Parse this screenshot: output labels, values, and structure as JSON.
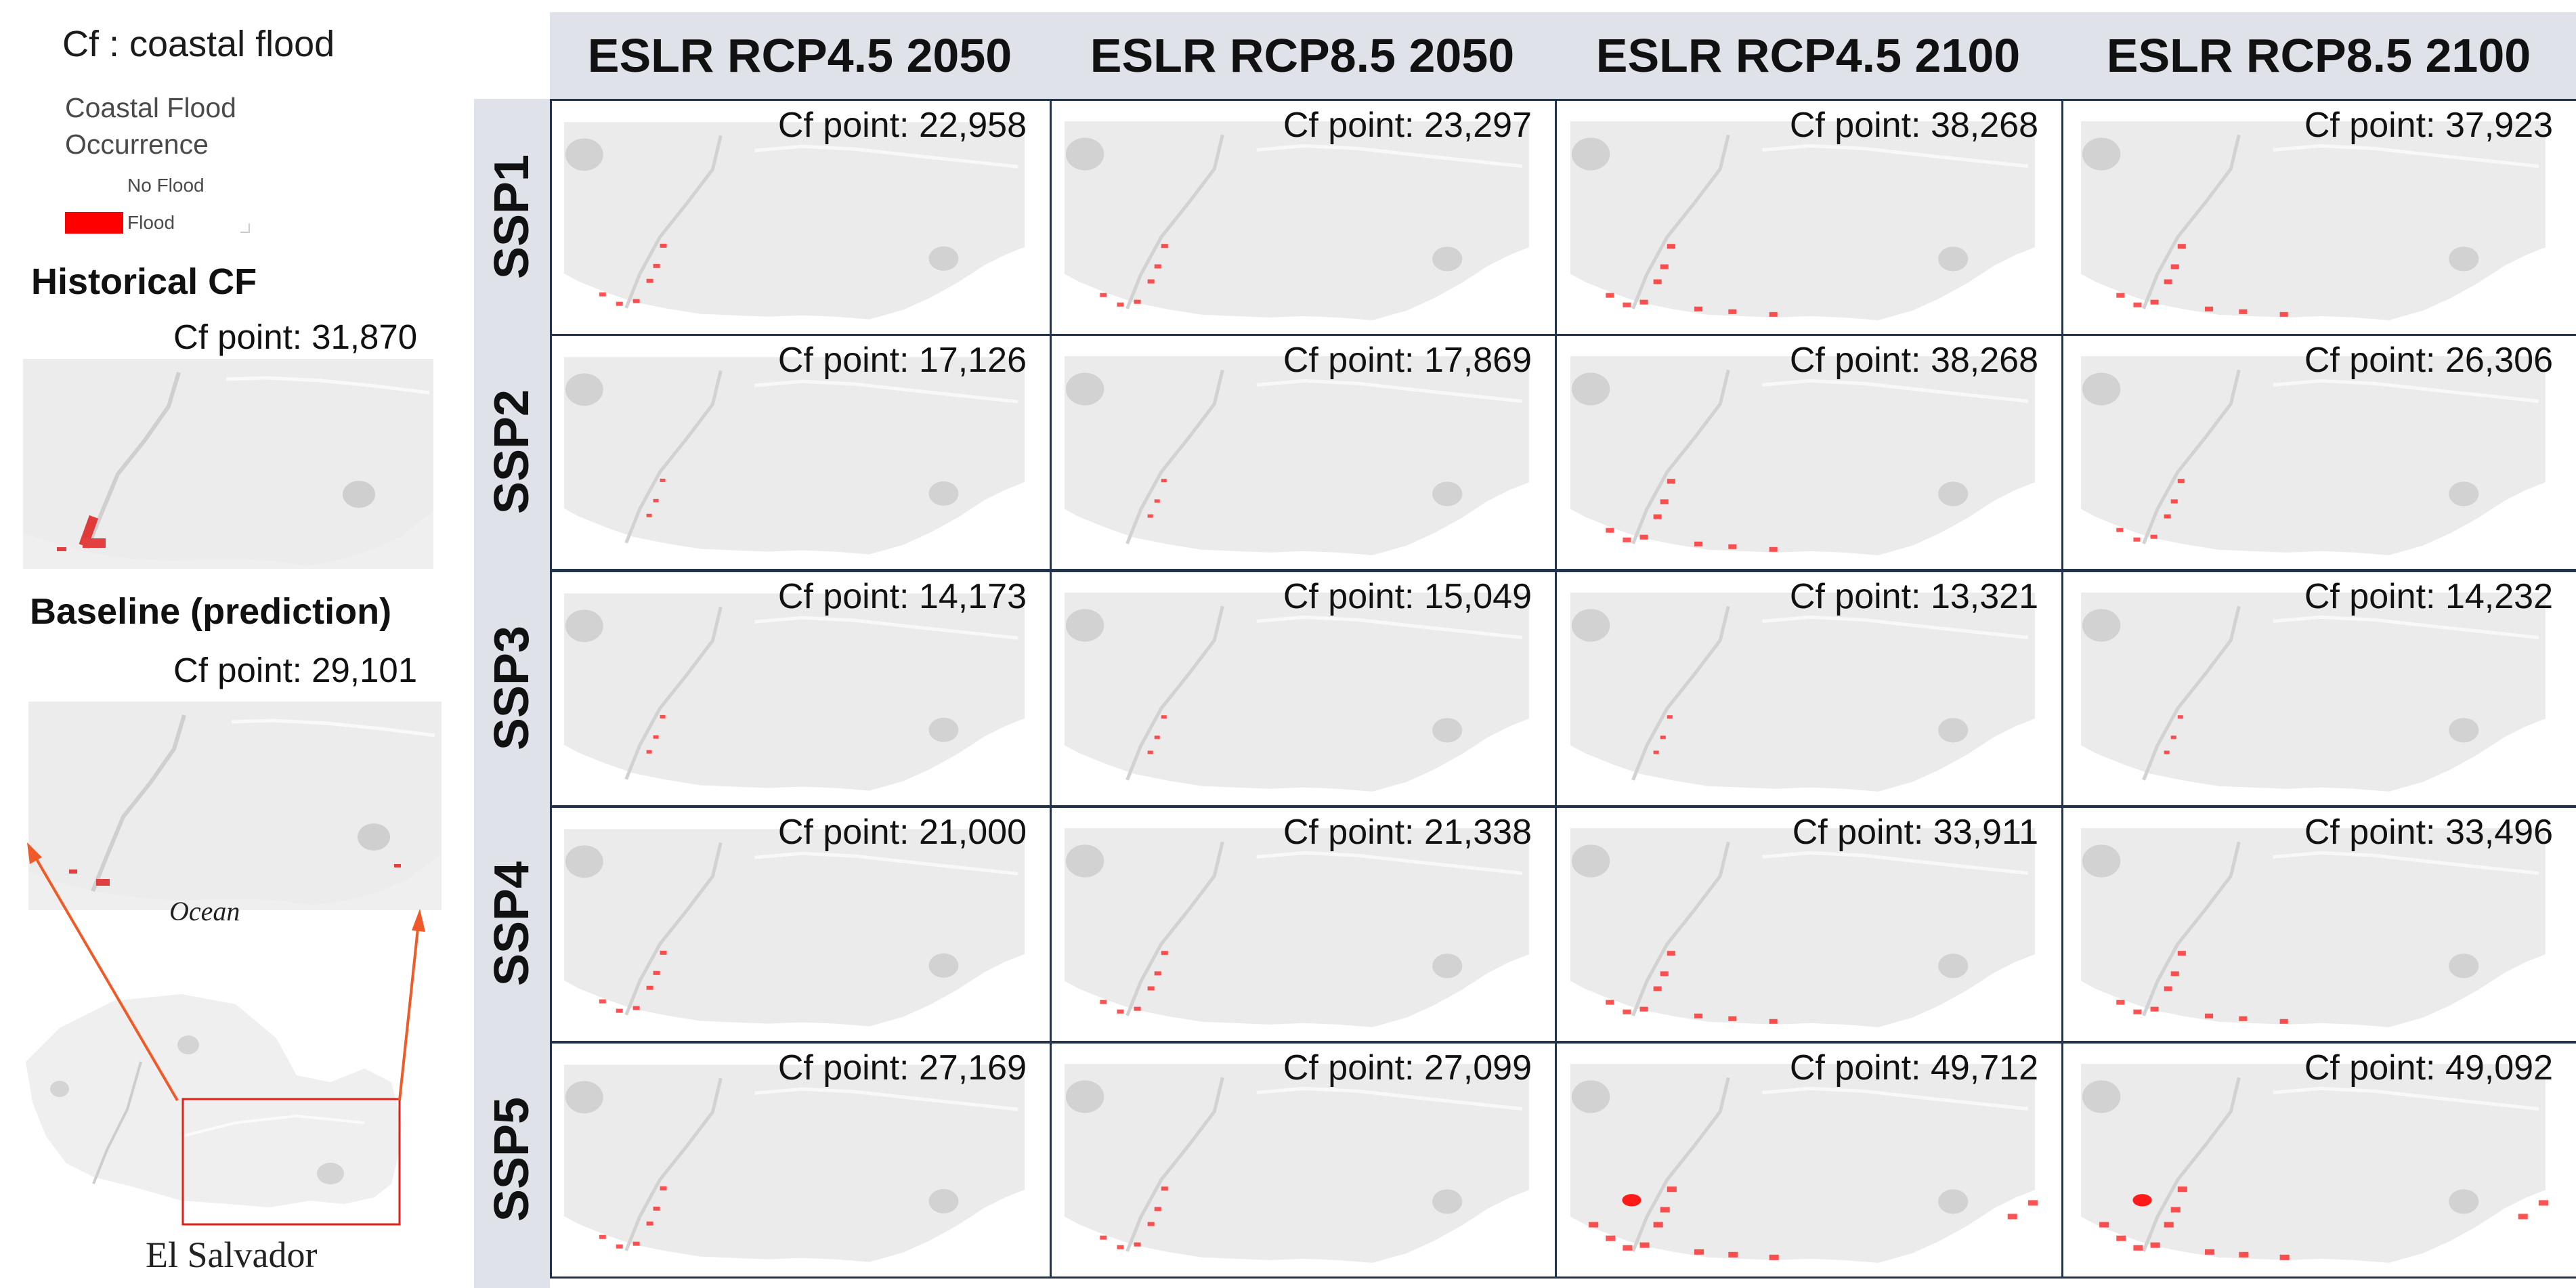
{
  "legend": {
    "abbreviation": "Cf : coastal flood",
    "title_line1": "Coastal Flood",
    "title_line2": "Occurrence",
    "items": [
      {
        "label": "No Flood",
        "color": "#ffffff"
      },
      {
        "label": "Flood",
        "color": "#ff0000"
      }
    ]
  },
  "historical": {
    "title": "Historical CF",
    "cf_point": "Cf point: 31,870"
  },
  "baseline": {
    "title": "Baseline (prediction)",
    "cf_point": "Cf point: 29,101"
  },
  "ocean_label": "Ocean",
  "country_label": "El Salvador",
  "colors": {
    "header_band": "#dfe3e9",
    "cell_border": "#24324a",
    "flood": "#ff1a1a",
    "land": "#efefef",
    "highlight_box": "#e0211b",
    "arrow": "#f05a28"
  },
  "columns": [
    "ESLR RCP4.5 2050",
    "ESLR RCP8.5 2050",
    "ESLR RCP4.5 2100",
    "ESLR RCP8.5 2100"
  ],
  "rows": [
    {
      "label": "SSP1",
      "cells": [
        "Cf point: 22,958",
        "Cf point: 23,297",
        "Cf point: 38,268",
        "Cf point: 37,923"
      ]
    },
    {
      "label": "SSP2",
      "cells": [
        "Cf point: 17,126",
        "Cf point: 17,869",
        "Cf point: 38,268",
        "Cf point: 26,306"
      ]
    },
    {
      "label": "SSP3",
      "cells": [
        "Cf point: 14,173",
        "Cf point: 15,049",
        "Cf point: 13,321",
        "Cf point: 14,232"
      ]
    },
    {
      "label": "SSP4",
      "cells": [
        "Cf point: 21,000",
        "Cf point: 21,338",
        "Cf point: 33,911",
        "Cf point: 33,496"
      ]
    },
    {
      "label": "SSP5",
      "cells": [
        "Cf point: 27,169",
        "Cf point: 27,099",
        "Cf point: 49,712",
        "Cf point: 49,092"
      ]
    }
  ]
}
